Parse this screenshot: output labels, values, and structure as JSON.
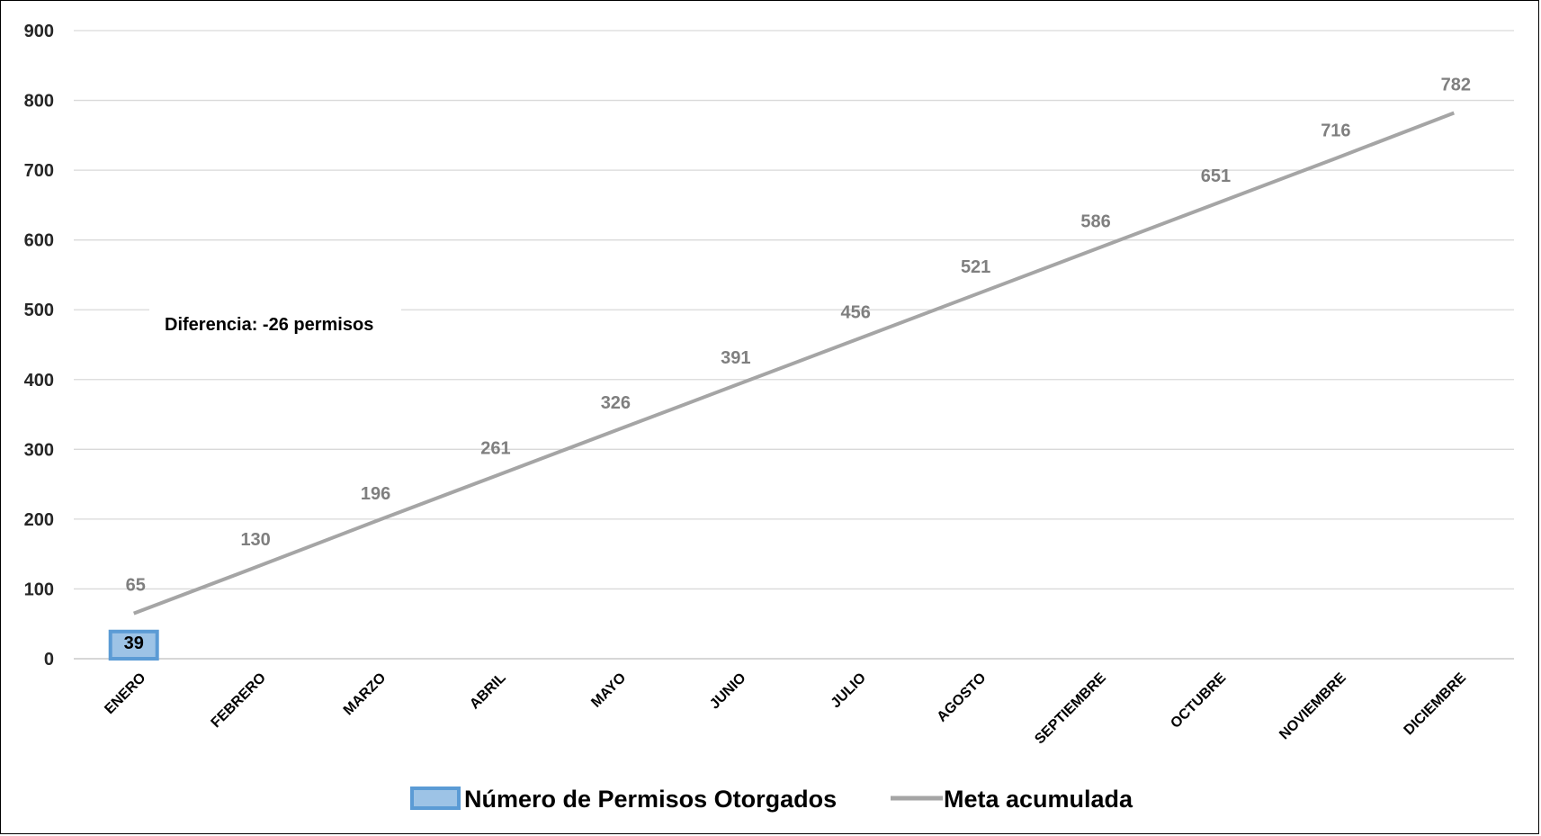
{
  "chart_data": {
    "type": "bar",
    "categories": [
      "ENERO",
      "FEBRERO",
      "MARZO",
      "ABRIL",
      "MAYO",
      "JUNIO",
      "JULIO",
      "AGOSTO",
      "SEPTIEMBRE",
      "OCTUBRE",
      "NOVIEMBRE",
      "DICIEMBRE"
    ],
    "series": [
      {
        "name": "Número de Permisos Otorgados",
        "type": "bar",
        "values": [
          39,
          null,
          null,
          null,
          null,
          null,
          null,
          null,
          null,
          null,
          null,
          null
        ],
        "color": "#9dc3e6",
        "border_color": "#5b9bd5"
      },
      {
        "name": "Meta acumulada",
        "type": "line",
        "values": [
          65,
          130,
          196,
          261,
          326,
          391,
          456,
          521,
          586,
          651,
          716,
          782
        ],
        "color": "#a5a5a5"
      }
    ],
    "ylim": [
      0,
      900
    ],
    "yticks": [
      0,
      100,
      200,
      300,
      400,
      500,
      600,
      700,
      800,
      900
    ],
    "grid": true,
    "legend_position": "bottom",
    "annotation": "Diferencia: -26 permisos",
    "title": "",
    "xlabel": "",
    "ylabel": ""
  }
}
